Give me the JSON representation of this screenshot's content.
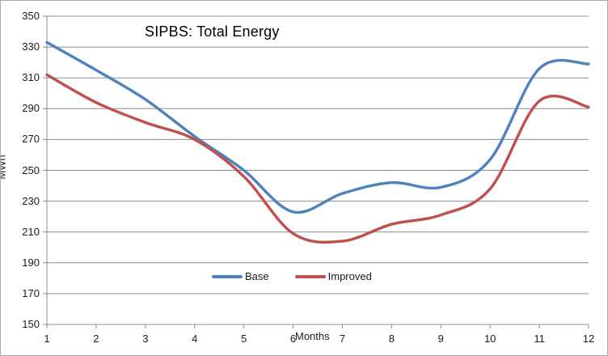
{
  "chart": {
    "title": "SIPBS: Total Energy",
    "x_axis_title": "Months",
    "y_axis_title": "MWh"
  },
  "chart_data": {
    "type": "line",
    "title": "SIPBS: Total Energy",
    "xlabel": "Months",
    "ylabel": "MWh",
    "x": [
      1,
      2,
      3,
      4,
      5,
      6,
      7,
      8,
      9,
      10,
      11,
      12
    ],
    "series": [
      {
        "name": "Base",
        "color": "#4F81BD",
        "values": [
          333,
          315,
          296,
          272,
          250,
          223,
          235,
          242,
          239,
          257,
          316,
          319
        ]
      },
      {
        "name": "Improved",
        "color": "#C0504D",
        "values": [
          312,
          294,
          281,
          270,
          246,
          209,
          204,
          215,
          221,
          238,
          295,
          291
        ]
      }
    ],
    "ylim": [
      150,
      350
    ],
    "y_ticks": [
      150,
      170,
      190,
      210,
      230,
      250,
      270,
      290,
      310,
      330,
      350
    ],
    "grid": "horizontal",
    "gridline_color": "#8c8c8c",
    "axis_color": "#8c8c8c",
    "smooth": true,
    "legend_position": "inside-bottom-center"
  }
}
